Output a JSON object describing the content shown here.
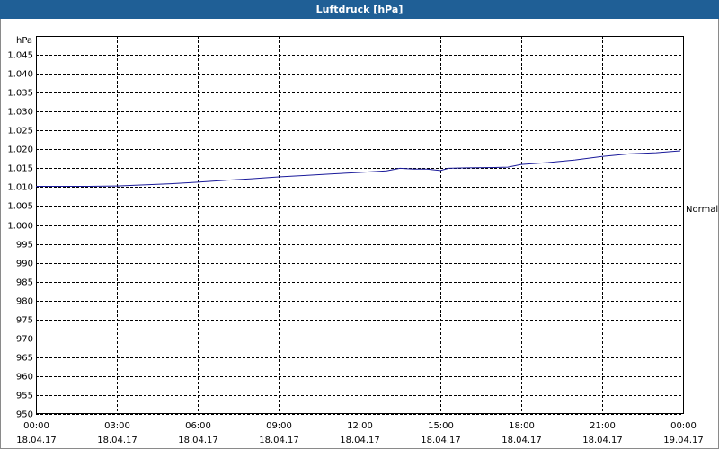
{
  "chart_data": {
    "type": "line",
    "title": "Luftdruck [hPa]",
    "y_axis_label": "hPa",
    "annotation": "Normal",
    "x": [
      0,
      1,
      2,
      3,
      4,
      5,
      6,
      7,
      8,
      9,
      10,
      11,
      12,
      12.5,
      13,
      13.5,
      14,
      14.5,
      15,
      15.3,
      16,
      17,
      17.5,
      18,
      19,
      20,
      21,
      22,
      23,
      23.9
    ],
    "series": [
      {
        "name": "Luftdruck",
        "color": "#1a1a9a",
        "values": [
          1010.2,
          1010.2,
          1010.2,
          1010.3,
          1010.6,
          1010.9,
          1011.3,
          1011.8,
          1012.2,
          1012.7,
          1013.1,
          1013.5,
          1013.9,
          1014.1,
          1014.3,
          1015.0,
          1014.8,
          1014.8,
          1014.4,
          1015.0,
          1015.1,
          1015.2,
          1015.3,
          1016.0,
          1016.5,
          1017.2,
          1018.1,
          1018.8,
          1019.1,
          1019.6
        ]
      }
    ],
    "xlim": [
      0,
      24
    ],
    "xticks": [
      {
        "value": 0,
        "label": [
          "00:00",
          "18.04.17"
        ]
      },
      {
        "value": 3,
        "label": [
          "03:00",
          "18.04.17"
        ]
      },
      {
        "value": 6,
        "label": [
          "06:00",
          "18.04.17"
        ]
      },
      {
        "value": 9,
        "label": [
          "09:00",
          "18.04.17"
        ]
      },
      {
        "value": 12,
        "label": [
          "12:00",
          "18.04.17"
        ]
      },
      {
        "value": 15,
        "label": [
          "15:00",
          "18.04.17"
        ]
      },
      {
        "value": 18,
        "label": [
          "18:00",
          "18.04.17"
        ]
      },
      {
        "value": 21,
        "label": [
          "21:00",
          "18.04.17"
        ]
      },
      {
        "value": 24,
        "label": [
          "00:00",
          "19.04.17"
        ]
      }
    ],
    "ylim": [
      950,
      1050
    ],
    "yticks": [
      950,
      955,
      960,
      965,
      970,
      975,
      980,
      985,
      990,
      995,
      {
        "value": 1000,
        "label": "1.000"
      },
      {
        "value": 1005,
        "label": "1.005"
      },
      {
        "value": 1010,
        "label": "1.010"
      },
      {
        "value": 1015,
        "label": "1.015"
      },
      {
        "value": 1020,
        "label": "1.020"
      },
      {
        "value": 1025,
        "label": "1.025"
      },
      {
        "value": 1030,
        "label": "1.030"
      },
      {
        "value": 1035,
        "label": "1.035"
      },
      {
        "value": 1040,
        "label": "1.040"
      },
      {
        "value": 1045,
        "label": "1.045"
      }
    ],
    "grid": true
  }
}
